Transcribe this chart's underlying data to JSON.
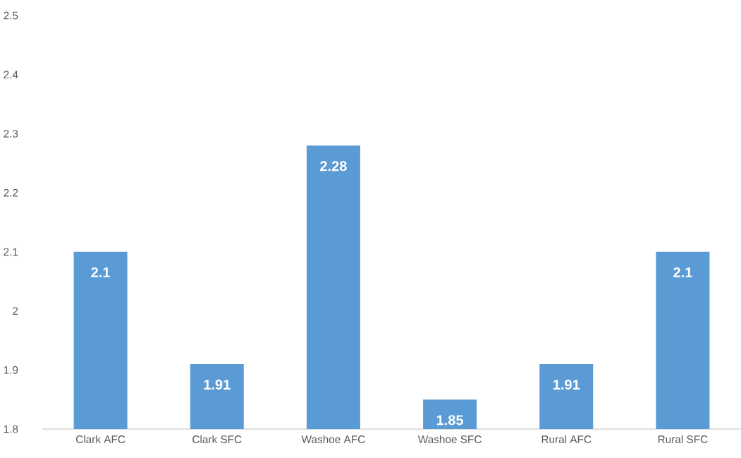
{
  "chart_data": {
    "type": "bar",
    "categories": [
      "Clark AFC",
      "Clark SFC",
      "Washoe AFC",
      "Washoe SFC",
      "Rural AFC",
      "Rural SFC"
    ],
    "values": [
      2.1,
      1.91,
      2.28,
      1.85,
      1.91,
      2.1
    ],
    "color": "#5b9bd5",
    "ylim": [
      1.8,
      2.5
    ],
    "yticks": [
      1.8,
      1.9,
      2,
      2.1,
      2.2,
      2.3,
      2.4,
      2.5
    ],
    "data_labels": true,
    "grid": false
  }
}
